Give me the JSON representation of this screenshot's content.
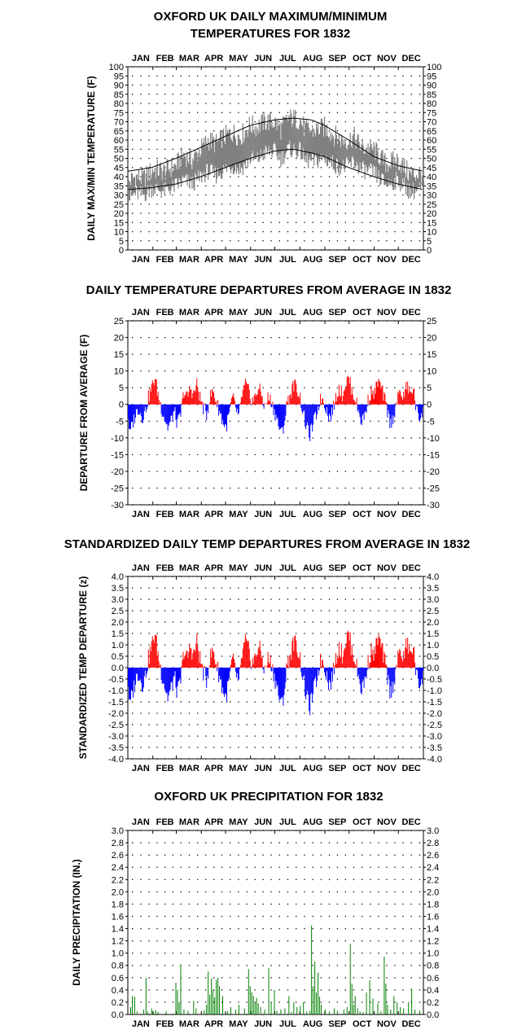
{
  "months": [
    "JAN",
    "FEB",
    "MAR",
    "APR",
    "MAY",
    "JUN",
    "JUL",
    "AUG",
    "SEP",
    "OCT",
    "NOV",
    "DEC"
  ],
  "chart_data": [
    {
      "type": "line",
      "title": [
        "OXFORD UK DAILY MAXIMUM/MINIMUM",
        "TEMPERATURES FOR 1832"
      ],
      "ylabel": "DAILY MAX/MIN TEMPERATURE (F)",
      "ylim": [
        0,
        100
      ],
      "yticks": [
        "0",
        "5",
        "10",
        "15",
        "20",
        "25",
        "30",
        "35",
        "40",
        "45",
        "50",
        "55",
        "60",
        "65",
        "70",
        "75",
        "80",
        "85",
        "90",
        "95",
        "100"
      ],
      "x": "day of year 1-366",
      "series": [
        {
          "role": "observed_max",
          "color": "#808080",
          "anchors": [
            [
              1,
              37
            ],
            [
              10,
              40
            ],
            [
              20,
              39
            ],
            [
              32,
              44
            ],
            [
              45,
              43
            ],
            [
              60,
              46
            ],
            [
              70,
              52
            ],
            [
              80,
              49
            ],
            [
              91,
              55
            ],
            [
              100,
              60
            ],
            [
              110,
              58
            ],
            [
              121,
              62
            ],
            [
              130,
              64
            ],
            [
              140,
              62
            ],
            [
              152,
              68
            ],
            [
              160,
              67
            ],
            [
              170,
              70
            ],
            [
              182,
              70
            ],
            [
              190,
              66
            ],
            [
              200,
              72
            ],
            [
              214,
              71
            ],
            [
              220,
              66
            ],
            [
              230,
              65
            ],
            [
              244,
              67
            ],
            [
              255,
              63
            ],
            [
              265,
              60
            ],
            [
              274,
              60
            ],
            [
              280,
              62
            ],
            [
              290,
              56
            ],
            [
              305,
              55
            ],
            [
              320,
              47
            ],
            [
              335,
              49
            ],
            [
              350,
              41
            ],
            [
              366,
              42
            ]
          ]
        },
        {
          "role": "observed_min",
          "color": "#808080",
          "anchors": [
            [
              1,
              28
            ],
            [
              10,
              31
            ],
            [
              20,
              30
            ],
            [
              32,
              34
            ],
            [
              45,
              32
            ],
            [
              60,
              35
            ],
            [
              70,
              38
            ],
            [
              80,
              36
            ],
            [
              91,
              40
            ],
            [
              100,
              43
            ],
            [
              110,
              41
            ],
            [
              121,
              44
            ],
            [
              130,
              46
            ],
            [
              140,
              44
            ],
            [
              152,
              50
            ],
            [
              160,
              49
            ],
            [
              170,
              53
            ],
            [
              182,
              54
            ],
            [
              190,
              50
            ],
            [
              200,
              55
            ],
            [
              214,
              54
            ],
            [
              220,
              49
            ],
            [
              230,
              48
            ],
            [
              244,
              50
            ],
            [
              255,
              47
            ],
            [
              265,
              45
            ],
            [
              274,
              46
            ],
            [
              280,
              48
            ],
            [
              290,
              44
            ],
            [
              305,
              42
            ],
            [
              320,
              36
            ],
            [
              335,
              38
            ],
            [
              350,
              32
            ],
            [
              366,
              33
            ]
          ]
        },
        {
          "role": "normal_max",
          "color": "#000000",
          "anchors": [
            [
              1,
              43
            ],
            [
              30,
              45
            ],
            [
              60,
              50
            ],
            [
              91,
              56
            ],
            [
              121,
              62
            ],
            [
              152,
              68
            ],
            [
              182,
              71
            ],
            [
              205,
              72
            ],
            [
              228,
              71
            ],
            [
              244,
              68
            ],
            [
              274,
              60
            ],
            [
              305,
              51
            ],
            [
              335,
              46
            ],
            [
              366,
              43
            ]
          ]
        },
        {
          "role": "normal_min",
          "color": "#000000",
          "anchors": [
            [
              1,
              33
            ],
            [
              30,
              34
            ],
            [
              60,
              36
            ],
            [
              91,
              40
            ],
            [
              121,
              45
            ],
            [
              152,
              50
            ],
            [
              182,
              54
            ],
            [
              205,
              55
            ],
            [
              228,
              53
            ],
            [
              244,
              51
            ],
            [
              274,
              45
            ],
            [
              305,
              40
            ],
            [
              335,
              36
            ],
            [
              366,
              33
            ]
          ]
        }
      ]
    },
    {
      "type": "bar",
      "title": "DAILY TEMPERATURE DEPARTURES FROM AVERAGE IN 1832",
      "ylabel": "DEPARTURE FROM AVERAGE (F)",
      "ylim": [
        -30,
        25
      ],
      "yticks": [
        "-30",
        "-25",
        "-20",
        "-15",
        "-10",
        "-5",
        "0",
        "5",
        "10",
        "15",
        "20",
        "25"
      ],
      "positive_color": "#ff0000",
      "negative_color": "#0000ff",
      "anchors": [
        [
          1,
          -4
        ],
        [
          3,
          -9
        ],
        [
          6,
          -6
        ],
        [
          10,
          -3
        ],
        [
          14,
          -1
        ],
        [
          18,
          -4
        ],
        [
          22,
          -2
        ],
        [
          26,
          2
        ],
        [
          30,
          5
        ],
        [
          34,
          8
        ],
        [
          38,
          3
        ],
        [
          42,
          -1
        ],
        [
          46,
          -4
        ],
        [
          50,
          -7
        ],
        [
          54,
          -5
        ],
        [
          58,
          -2
        ],
        [
          62,
          -6
        ],
        [
          66,
          -3
        ],
        [
          70,
          4
        ],
        [
          74,
          2
        ],
        [
          78,
          5
        ],
        [
          82,
          3
        ],
        [
          86,
          6
        ],
        [
          90,
          2
        ],
        [
          94,
          -1
        ],
        [
          98,
          -3
        ],
        [
          102,
          2
        ],
        [
          106,
          4
        ],
        [
          110,
          1
        ],
        [
          114,
          -2
        ],
        [
          118,
          -5
        ],
        [
          122,
          -7
        ],
        [
          126,
          -3
        ],
        [
          130,
          2
        ],
        [
          134,
          -1
        ],
        [
          138,
          -4
        ],
        [
          142,
          3
        ],
        [
          146,
          6
        ],
        [
          150,
          4
        ],
        [
          154,
          1
        ],
        [
          158,
          2
        ],
        [
          162,
          5
        ],
        [
          166,
          3
        ],
        [
          170,
          -1
        ],
        [
          174,
          2
        ],
        [
          178,
          1
        ],
        [
          182,
          -2
        ],
        [
          186,
          -5
        ],
        [
          190,
          -9
        ],
        [
          194,
          -6
        ],
        [
          198,
          1
        ],
        [
          202,
          3
        ],
        [
          206,
          6
        ],
        [
          210,
          5
        ],
        [
          214,
          2
        ],
        [
          218,
          -3
        ],
        [
          222,
          -7
        ],
        [
          226,
          -9
        ],
        [
          230,
          -6
        ],
        [
          234,
          -3
        ],
        [
          238,
          1
        ],
        [
          242,
          2
        ],
        [
          246,
          -1
        ],
        [
          250,
          -4
        ],
        [
          254,
          -2
        ],
        [
          258,
          2
        ],
        [
          262,
          5
        ],
        [
          266,
          3
        ],
        [
          270,
          6
        ],
        [
          274,
          8
        ],
        [
          278,
          4
        ],
        [
          282,
          2
        ],
        [
          286,
          -2
        ],
        [
          290,
          -5
        ],
        [
          294,
          -3
        ],
        [
          298,
          1
        ],
        [
          302,
          4
        ],
        [
          306,
          3
        ],
        [
          310,
          7
        ],
        [
          314,
          5
        ],
        [
          318,
          2
        ],
        [
          322,
          -2
        ],
        [
          326,
          -6
        ],
        [
          330,
          -3
        ],
        [
          334,
          1
        ],
        [
          338,
          4
        ],
        [
          342,
          2
        ],
        [
          346,
          6
        ],
        [
          350,
          3
        ],
        [
          354,
          5
        ],
        [
          358,
          -2
        ],
        [
          362,
          -4
        ],
        [
          366,
          -1
        ]
      ]
    },
    {
      "type": "bar",
      "title": "STANDARDIZED DAILY TEMP DEPARTURES FROM AVERAGE IN 1832",
      "ylabel": "STANDARDIZED TEMP DEPARTURE (z)",
      "ylim": [
        -4,
        4
      ],
      "yticks": [
        "-4.0",
        "-3.5",
        "-3.0",
        "-2.5",
        "-2.0",
        "-1.5",
        "-1.0",
        "-0.5",
        "0.0",
        "0.5",
        "1.0",
        "1.5",
        "2.0",
        "2.5",
        "3.0",
        "3.5",
        "4.0"
      ],
      "positive_color": "#ff0000",
      "negative_color": "#0000ff",
      "scale_from_previous": 0.19
    },
    {
      "type": "bar",
      "title": "OXFORD UK PRECIPITATION FOR 1832",
      "ylabel": "DAILY PRECIPITATION (IN.)",
      "ylim": [
        0,
        3
      ],
      "yticks": [
        "0.0",
        "0.2",
        "0.4",
        "0.6",
        "0.8",
        "1.0",
        "1.2",
        "1.4",
        "1.6",
        "1.8",
        "2.0",
        "2.2",
        "2.4",
        "2.6",
        "2.8",
        "3.0"
      ],
      "color": "#008000",
      "bars": [
        [
          4,
          0.12
        ],
        [
          6,
          0.3
        ],
        [
          9,
          0.29
        ],
        [
          12,
          0.05
        ],
        [
          20,
          0.08
        ],
        [
          23,
          0.6
        ],
        [
          25,
          0.05
        ],
        [
          30,
          0.1
        ],
        [
          32,
          0.05
        ],
        [
          35,
          0.07
        ],
        [
          38,
          0.04
        ],
        [
          48,
          0.05
        ],
        [
          60,
          0.52
        ],
        [
          62,
          0.4
        ],
        [
          64,
          0.2
        ],
        [
          66,
          0.82
        ],
        [
          70,
          0.08
        ],
        [
          75,
          0.06
        ],
        [
          82,
          0.22
        ],
        [
          85,
          0.1
        ],
        [
          95,
          0.07
        ],
        [
          98,
          0.16
        ],
        [
          100,
          0.7
        ],
        [
          102,
          0.32
        ],
        [
          104,
          0.59
        ],
        [
          106,
          0.4
        ],
        [
          108,
          0.28
        ],
        [
          110,
          0.56
        ],
        [
          112,
          0.6
        ],
        [
          114,
          0.46
        ],
        [
          118,
          0.3
        ],
        [
          124,
          0.05
        ],
        [
          128,
          0.12
        ],
        [
          134,
          0.08
        ],
        [
          138,
          0.16
        ],
        [
          145,
          0.1
        ],
        [
          150,
          0.74
        ],
        [
          152,
          0.46
        ],
        [
          154,
          0.36
        ],
        [
          156,
          0.3
        ],
        [
          158,
          0.2
        ],
        [
          160,
          0.27
        ],
        [
          162,
          0.18
        ],
        [
          165,
          0.12
        ],
        [
          170,
          0.08
        ],
        [
          175,
          0.76
        ],
        [
          178,
          0.2
        ],
        [
          182,
          0.4
        ],
        [
          185,
          0.06
        ],
        [
          190,
          0.08
        ],
        [
          195,
          0.1
        ],
        [
          200,
          0.3
        ],
        [
          203,
          0.04
        ],
        [
          206,
          0.2
        ],
        [
          210,
          0.12
        ],
        [
          214,
          0.14
        ],
        [
          218,
          0.2
        ],
        [
          222,
          0.05
        ],
        [
          226,
          0.06
        ],
        [
          228,
          1.45
        ],
        [
          230,
          0.46
        ],
        [
          232,
          0.86
        ],
        [
          234,
          0.36
        ],
        [
          236,
          0.68
        ],
        [
          238,
          0.29
        ],
        [
          240,
          0.16
        ],
        [
          245,
          0.08
        ],
        [
          250,
          0.05
        ],
        [
          256,
          0.1
        ],
        [
          260,
          0.06
        ],
        [
          268,
          0.08
        ],
        [
          272,
          0.12
        ],
        [
          276,
          1.15
        ],
        [
          278,
          0.5
        ],
        [
          280,
          0.16
        ],
        [
          282,
          0.3
        ],
        [
          285,
          0.1
        ],
        [
          288,
          0.05
        ],
        [
          292,
          0.04
        ],
        [
          296,
          0.36
        ],
        [
          300,
          0.56
        ],
        [
          304,
          0.26
        ],
        [
          310,
          0.18
        ],
        [
          314,
          0.05
        ],
        [
          318,
          0.94
        ],
        [
          320,
          0.5
        ],
        [
          322,
          0.16
        ],
        [
          326,
          0.08
        ],
        [
          330,
          0.3
        ],
        [
          334,
          0.2
        ],
        [
          338,
          0.12
        ],
        [
          342,
          0.1
        ],
        [
          348,
          0.2
        ],
        [
          352,
          0.42
        ],
        [
          356,
          0.08
        ],
        [
          362,
          0.06
        ]
      ]
    }
  ]
}
